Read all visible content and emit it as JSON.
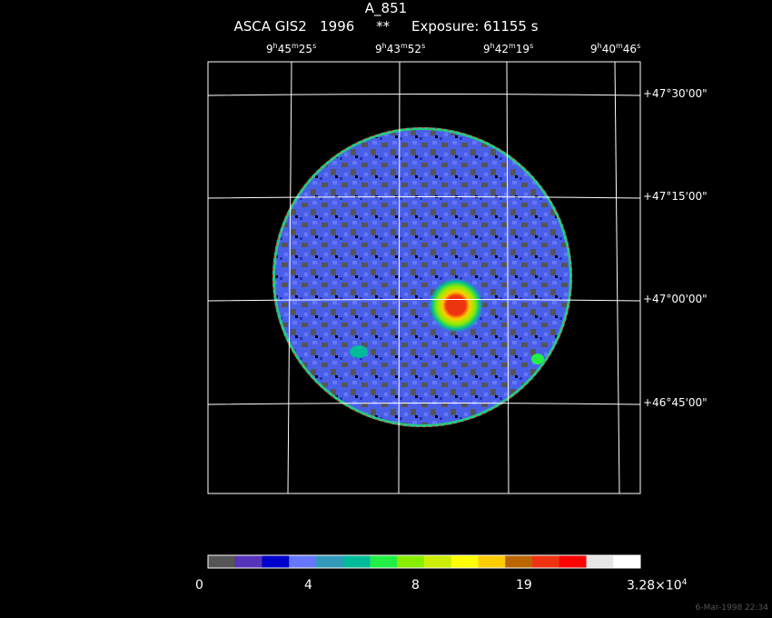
{
  "header": {
    "object": "A_851",
    "line2": "ASCA GIS2   1996     **     Exposure: 61155 s"
  },
  "ra_labels": [
    {
      "h": "9",
      "m": "45",
      "s": "25"
    },
    {
      "h": "9",
      "m": "43",
      "s": "52"
    },
    {
      "h": "9",
      "m": "42",
      "s": "19"
    },
    {
      "h": "9",
      "m": "40",
      "s": "46"
    }
  ],
  "dec_labels": [
    "+47°30'00\"",
    "+47°15'00\"",
    "+47°00'00\"",
    "+46°45'00\""
  ],
  "colorbar": {
    "colors": [
      "#555555",
      "#5533bb",
      "#0000cc",
      "#6677ff",
      "#3399bb",
      "#00bb99",
      "#22ee44",
      "#88ee00",
      "#ccee00",
      "#ffff00",
      "#ffcc00",
      "#bb6600",
      "#ee3311",
      "#ff0000",
      "#e6e6e6",
      "#ffffff"
    ],
    "labels": [
      "0",
      "4",
      "8",
      "19"
    ],
    "max_label": {
      "base": "3.28×10",
      "exp": "4"
    }
  },
  "footer": {
    "timestamp": "6-Mar-1998 22:34"
  }
}
